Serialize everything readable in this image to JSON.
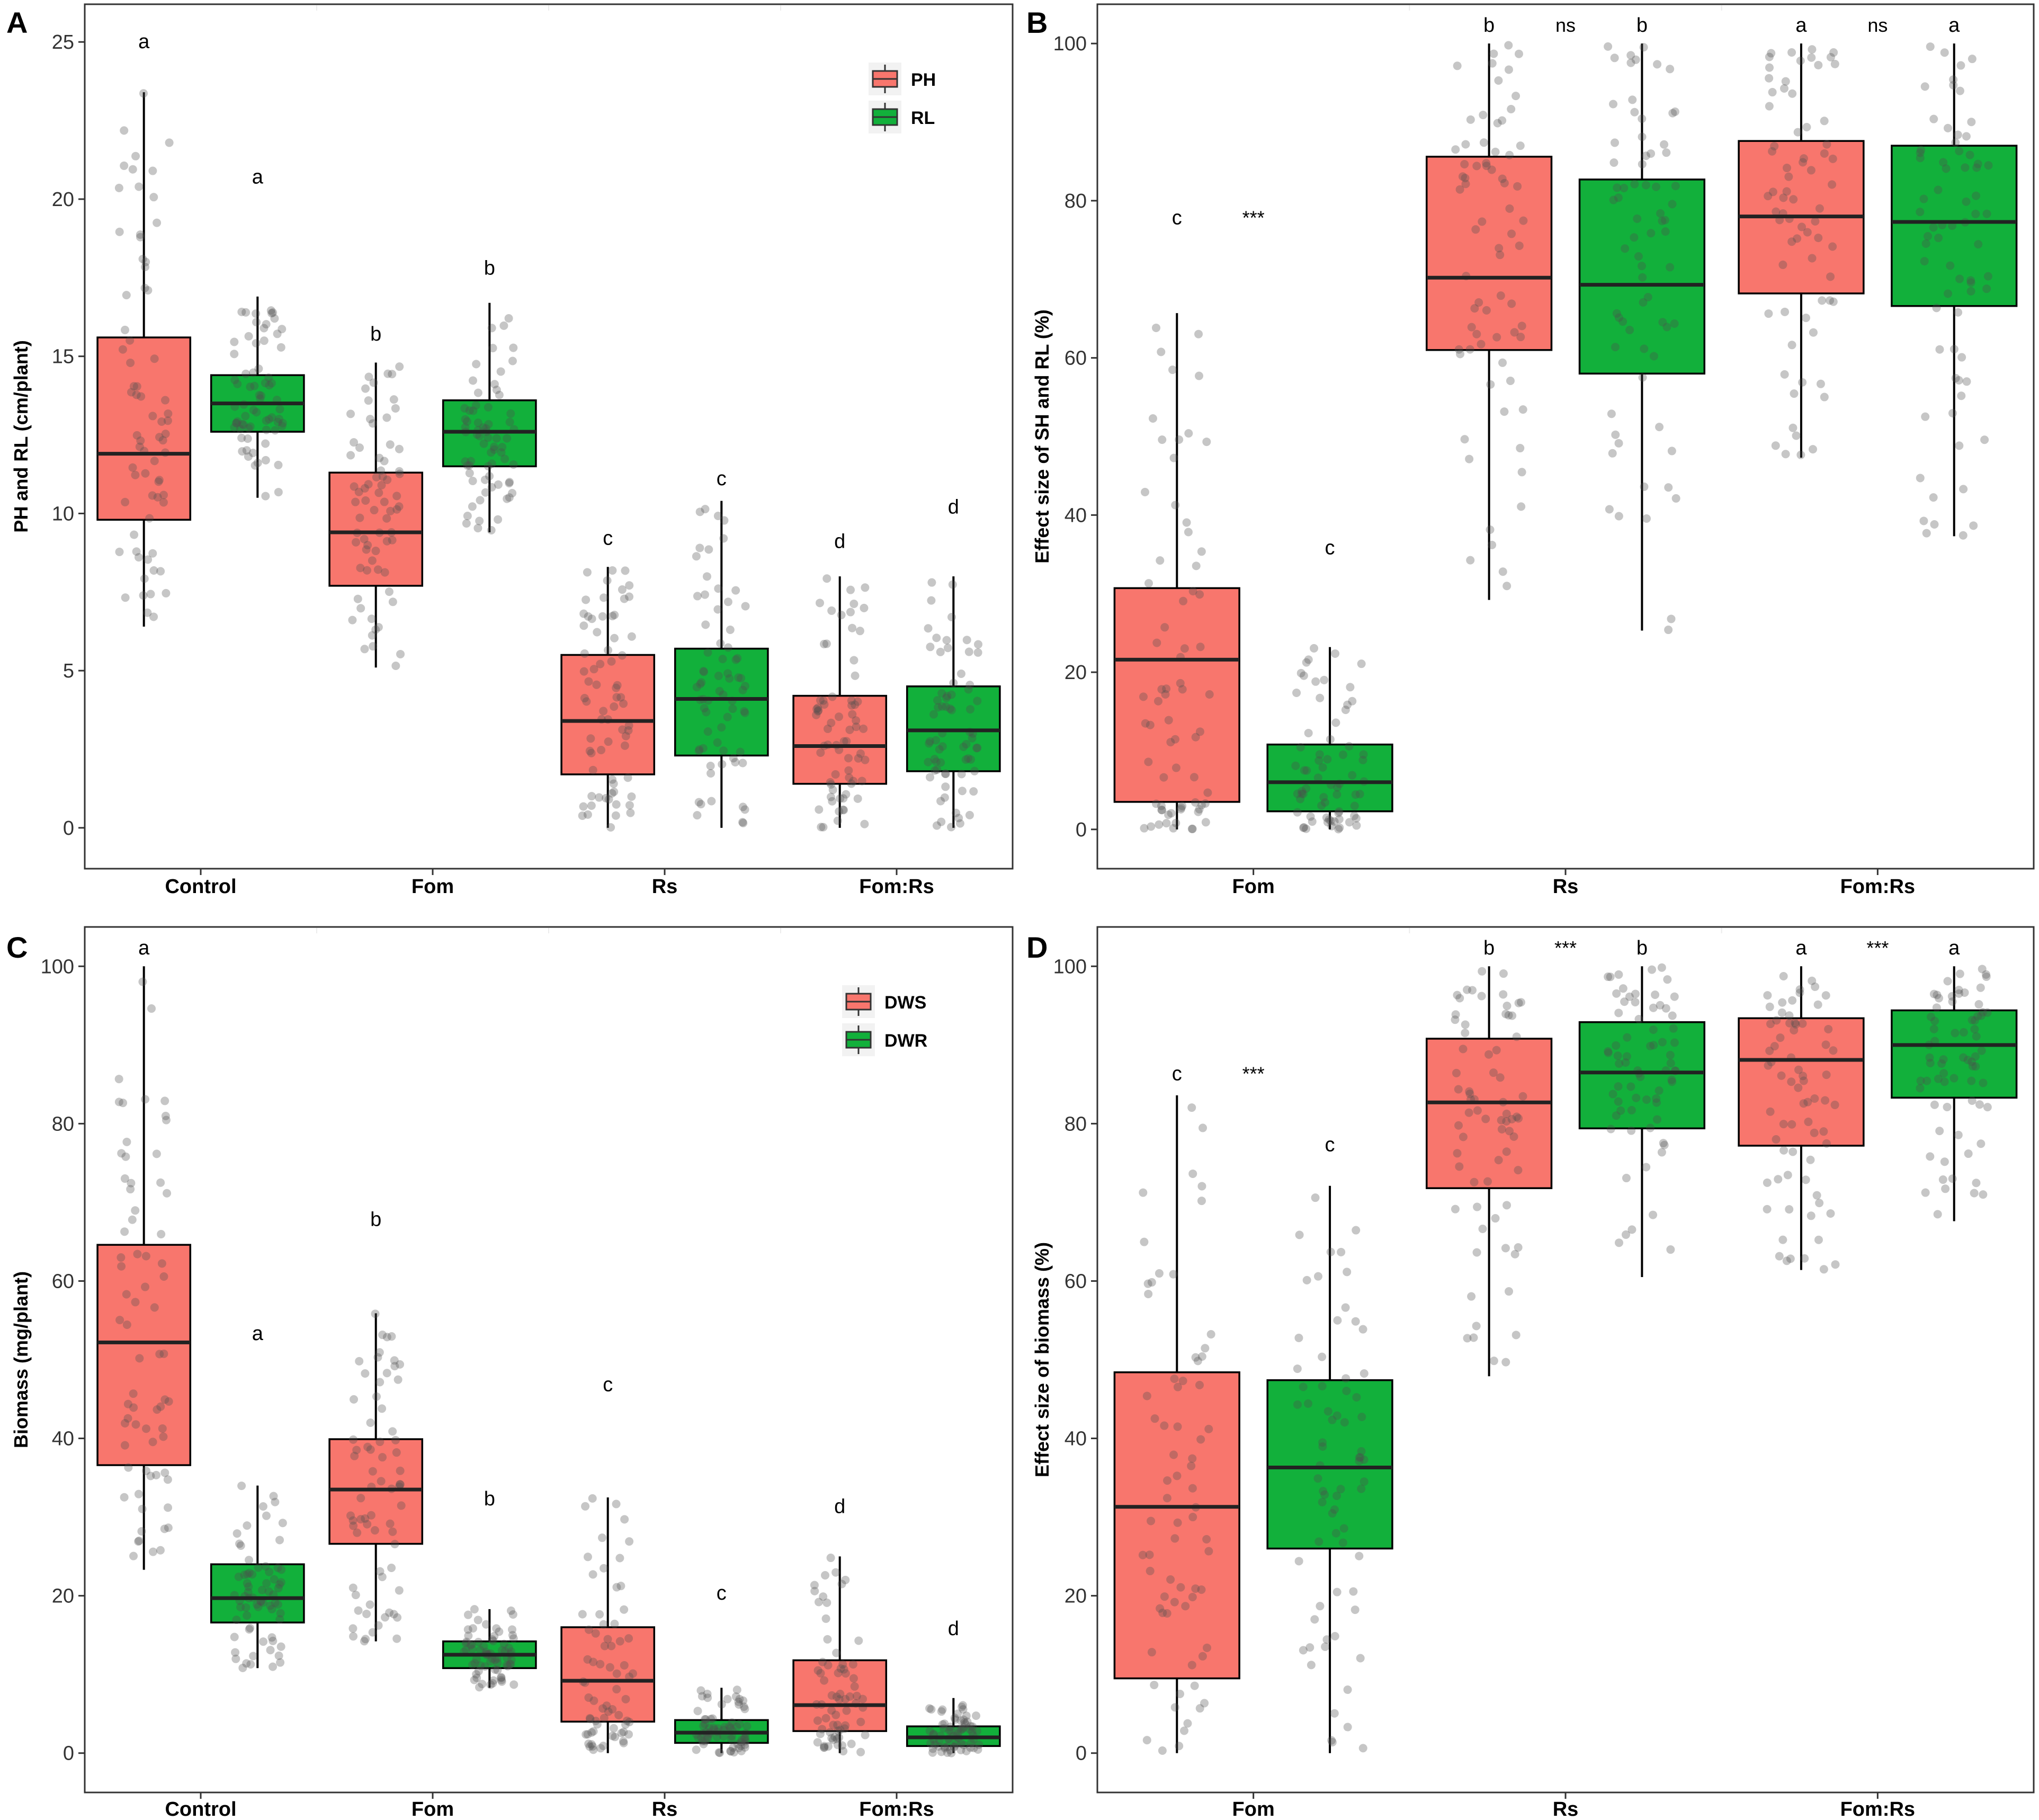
{
  "colors": {
    "ph": "#f8766d",
    "rl": "#12b03b",
    "point": "#4d4d4d"
  },
  "panels": [
    {
      "id": "A",
      "ylabel": "PH and RL (cm/plant)",
      "ylim": [
        -1.3,
        26.2
      ],
      "yticks": [
        0,
        5,
        10,
        15,
        20,
        25
      ],
      "categories": [
        "Control",
        "Fom",
        "Rs",
        "Fom:Rs"
      ],
      "legend": [
        "PH",
        "RL"
      ],
      "boxes": [
        {
          "cat": 0,
          "series": 0,
          "q1": 9.8,
          "median": 11.9,
          "q3": 15.6,
          "lo": 6.4,
          "hi": 23.4,
          "letter": "a",
          "letter_y": 24.8
        },
        {
          "cat": 0,
          "series": 1,
          "q1": 12.6,
          "median": 13.5,
          "q3": 14.4,
          "lo": 10.5,
          "hi": 16.9,
          "letter": "a",
          "letter_y": 20.5
        },
        {
          "cat": 1,
          "series": 0,
          "q1": 7.7,
          "median": 9.4,
          "q3": 11.3,
          "lo": 5.1,
          "hi": 14.8,
          "letter": "b",
          "letter_y": 15.5
        },
        {
          "cat": 1,
          "series": 1,
          "q1": 11.5,
          "median": 12.6,
          "q3": 13.6,
          "lo": 9.4,
          "hi": 16.7,
          "letter": "b",
          "letter_y": 17.6
        },
        {
          "cat": 2,
          "series": 0,
          "q1": 1.7,
          "median": 3.4,
          "q3": 5.5,
          "lo": 0,
          "hi": 8.3,
          "letter": "c",
          "letter_y": 9.0
        },
        {
          "cat": 2,
          "series": 1,
          "q1": 2.3,
          "median": 4.1,
          "q3": 5.7,
          "lo": 0,
          "hi": 10.4,
          "letter": "c",
          "letter_y": 10.9
        },
        {
          "cat": 3,
          "series": 0,
          "q1": 1.4,
          "median": 2.6,
          "q3": 4.2,
          "lo": 0,
          "hi": 8.0,
          "letter": "d",
          "letter_y": 8.9
        },
        {
          "cat": 3,
          "series": 1,
          "q1": 1.8,
          "median": 3.1,
          "q3": 4.5,
          "lo": 0,
          "hi": 8.0,
          "letter": "d",
          "letter_y": 10.0
        }
      ],
      "sig": []
    },
    {
      "id": "B",
      "ylabel": "Effect size of SH and RL (%)",
      "ylim": [
        -5,
        105
      ],
      "yticks": [
        0,
        20,
        40,
        60,
        80,
        100
      ],
      "categories": [
        "Fom",
        "Rs",
        "Fom:Rs"
      ],
      "legend": [],
      "boxes": [
        {
          "cat": 0,
          "series": 0,
          "q1": 3.5,
          "median": 21.6,
          "q3": 30.7,
          "lo": 0,
          "hi": 65.7,
          "letter": "c",
          "letter_y": 77.0
        },
        {
          "cat": 0,
          "series": 1,
          "q1": 2.3,
          "median": 6.0,
          "q3": 10.8,
          "lo": 0,
          "hi": 23.2,
          "letter": "c",
          "letter_y": 35.0
        },
        {
          "cat": 1,
          "series": 0,
          "q1": 61.0,
          "median": 70.2,
          "q3": 85.6,
          "lo": 29.2,
          "hi": 100,
          "letter": "b",
          "letter_y": 101.5
        },
        {
          "cat": 1,
          "series": 1,
          "q1": 58.0,
          "median": 69.3,
          "q3": 82.7,
          "lo": 25.3,
          "hi": 100,
          "letter": "b",
          "letter_y": 101.5
        },
        {
          "cat": 2,
          "series": 0,
          "q1": 68.2,
          "median": 78.0,
          "q3": 87.6,
          "lo": 47.3,
          "hi": 100,
          "letter": "a",
          "letter_y": 101.5
        },
        {
          "cat": 2,
          "series": 1,
          "q1": 66.6,
          "median": 77.3,
          "q3": 87.0,
          "lo": 37.3,
          "hi": 100,
          "letter": "a",
          "letter_y": 101.5
        }
      ],
      "sig": [
        {
          "cat": 0,
          "text": "***",
          "y": 77.0
        },
        {
          "cat": 1,
          "text": "ns",
          "y": 101.5
        },
        {
          "cat": 2,
          "text": "ns",
          "y": 101.5
        }
      ]
    },
    {
      "id": "C",
      "ylabel": "Biomass (mg/plant)",
      "ylim": [
        -5,
        105
      ],
      "yticks": [
        0,
        20,
        40,
        60,
        80,
        100
      ],
      "categories": [
        "Control",
        "Fom",
        "Rs",
        "Fom:Rs"
      ],
      "legend": [
        "DWS",
        "DWR"
      ],
      "boxes": [
        {
          "cat": 0,
          "series": 0,
          "q1": 36.6,
          "median": 52.2,
          "q3": 64.6,
          "lo": 23.3,
          "hi": 100,
          "letter": "a",
          "letter_y": 101.5
        },
        {
          "cat": 0,
          "series": 1,
          "q1": 16.6,
          "median": 19.7,
          "q3": 24.0,
          "lo": 10.8,
          "hi": 34.0,
          "letter": "a",
          "letter_y": 52.5
        },
        {
          "cat": 1,
          "series": 0,
          "q1": 26.6,
          "median": 33.5,
          "q3": 39.9,
          "lo": 14.2,
          "hi": 55.9,
          "letter": "b",
          "letter_y": 67.0
        },
        {
          "cat": 1,
          "series": 1,
          "q1": 10.8,
          "median": 12.5,
          "q3": 14.2,
          "lo": 8.3,
          "hi": 18.3,
          "letter": "b",
          "letter_y": 31.5
        },
        {
          "cat": 2,
          "series": 0,
          "q1": 4.0,
          "median": 9.2,
          "q3": 16.0,
          "lo": 0,
          "hi": 32.5,
          "letter": "c",
          "letter_y": 46.0
        },
        {
          "cat": 2,
          "series": 1,
          "q1": 1.3,
          "median": 2.6,
          "q3": 4.2,
          "lo": 0,
          "hi": 8.3,
          "letter": "c",
          "letter_y": 19.5
        },
        {
          "cat": 3,
          "series": 0,
          "q1": 2.8,
          "median": 6.1,
          "q3": 11.8,
          "lo": 0,
          "hi": 25.0,
          "letter": "d",
          "letter_y": 30.5
        },
        {
          "cat": 3,
          "series": 1,
          "q1": 0.9,
          "median": 2.0,
          "q3": 3.4,
          "lo": 0,
          "hi": 7.0,
          "letter": "d",
          "letter_y": 15.0
        }
      ],
      "sig": []
    },
    {
      "id": "D",
      "ylabel": "Effect size of biomass (%)",
      "ylim": [
        -5,
        105
      ],
      "yticks": [
        0,
        20,
        40,
        60,
        80,
        100
      ],
      "categories": [
        "Fom",
        "Rs",
        "Fom:Rs"
      ],
      "legend": [],
      "boxes": [
        {
          "cat": 0,
          "series": 0,
          "q1": 9.5,
          "median": 31.3,
          "q3": 48.4,
          "lo": 0,
          "hi": 83.6,
          "letter": "c",
          "letter_y": 85.5
        },
        {
          "cat": 0,
          "series": 1,
          "q1": 26.0,
          "median": 36.3,
          "q3": 47.4,
          "lo": 0,
          "hi": 72.1,
          "letter": "c",
          "letter_y": 76.5
        },
        {
          "cat": 1,
          "series": 0,
          "q1": 71.8,
          "median": 82.7,
          "q3": 90.8,
          "lo": 47.9,
          "hi": 100,
          "letter": "b",
          "letter_y": 101.5
        },
        {
          "cat": 1,
          "series": 1,
          "q1": 79.4,
          "median": 86.5,
          "q3": 92.9,
          "lo": 60.5,
          "hi": 100,
          "letter": "b",
          "letter_y": 101.5
        },
        {
          "cat": 2,
          "series": 0,
          "q1": 77.2,
          "median": 88.1,
          "q3": 93.4,
          "lo": 61.4,
          "hi": 100,
          "letter": "a",
          "letter_y": 101.5
        },
        {
          "cat": 2,
          "series": 1,
          "q1": 83.3,
          "median": 90.0,
          "q3": 94.4,
          "lo": 67.6,
          "hi": 100,
          "letter": "a",
          "letter_y": 101.5
        }
      ],
      "sig": [
        {
          "cat": 0,
          "text": "***",
          "y": 85.5
        },
        {
          "cat": 1,
          "text": "***",
          "y": 101.5
        },
        {
          "cat": 2,
          "text": "***",
          "y": 101.5
        }
      ]
    }
  ]
}
